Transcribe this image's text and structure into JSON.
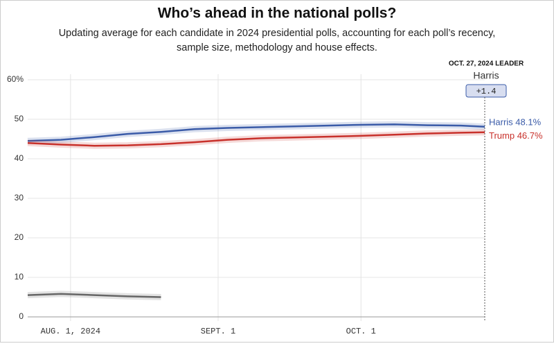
{
  "chart_data": {
    "type": "line",
    "title": "Who’s ahead in the national polls?",
    "subtitle": "Updating average for each candidate in 2024 presidential polls, accounting for each poll’s recency, sample size, methodology and house effects.",
    "x": [
      "2024-07-23",
      "2024-07-30",
      "2024-08-06",
      "2024-08-13",
      "2024-08-20",
      "2024-08-27",
      "2024-09-03",
      "2024-09-10",
      "2024-09-17",
      "2024-09-24",
      "2024-10-01",
      "2024-10-08",
      "2024-10-15",
      "2024-10-22",
      "2024-10-27"
    ],
    "series": [
      {
        "name": "Harris",
        "color": "#3a5ba8",
        "values": [
          44.5,
          44.8,
          45.5,
          46.3,
          46.8,
          47.5,
          47.8,
          48.0,
          48.2,
          48.4,
          48.6,
          48.7,
          48.5,
          48.4,
          48.1
        ]
      },
      {
        "name": "Trump",
        "color": "#c8312b",
        "values": [
          44.0,
          43.6,
          43.3,
          43.4,
          43.7,
          44.2,
          44.8,
          45.2,
          45.4,
          45.6,
          45.8,
          46.1,
          46.4,
          46.6,
          46.7
        ]
      },
      {
        "color": "#666666",
        "values": [
          5.5,
          5.8,
          5.5,
          5.2,
          5.0,
          null,
          null,
          null,
          null,
          null,
          null,
          null,
          null,
          null,
          null
        ]
      }
    ],
    "xlim": [
      "2024-07-23",
      "2024-10-27"
    ],
    "xticks": [
      {
        "value": "2024-08-01",
        "label": "AUG. 1, 2024"
      },
      {
        "value": "2024-09-01",
        "label": "SEPT. 1"
      },
      {
        "value": "2024-10-01",
        "label": "OCT. 1"
      }
    ],
    "ylim": [
      0,
      60
    ],
    "yticks": [
      0,
      10,
      20,
      30,
      40,
      50,
      {
        "value": 60,
        "label": "60%"
      }
    ],
    "grid": true,
    "annotations": {
      "leader_heading": "OCT. 27, 2024 LEADER",
      "leader_name": "Harris",
      "leader_margin": "+1.4",
      "end_labels": [
        "Harris 48.1%",
        "Trump 46.7%"
      ]
    }
  }
}
